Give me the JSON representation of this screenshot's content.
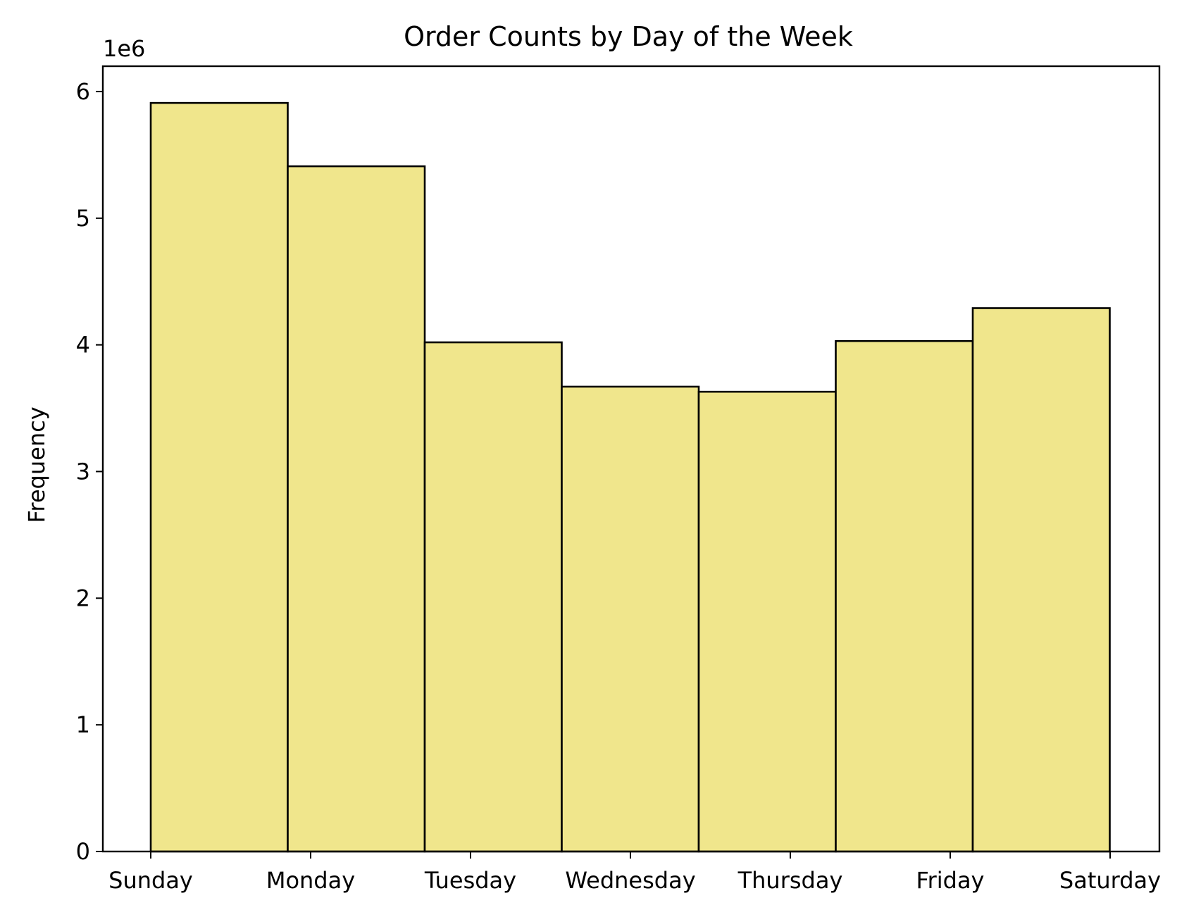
{
  "chart_data": {
    "type": "bar",
    "title": "Order Counts by Day of the Week",
    "xlabel": "",
    "ylabel": "Frequency",
    "y_offset_label": "1e6",
    "categories": [
      "Sunday",
      "Monday",
      "Tuesday",
      "Wednesday",
      "Thursday",
      "Friday",
      "Saturday"
    ],
    "values": [
      5910000,
      5410000,
      4020000,
      3670000,
      3630000,
      4030000,
      4290000
    ],
    "yticks": [
      0,
      1,
      2,
      3,
      4,
      5,
      6
    ],
    "ylim": [
      0,
      6200000
    ],
    "bar_color": "#f0e68c",
    "edge_color": "#000000",
    "grid": false,
    "legend": "none"
  }
}
